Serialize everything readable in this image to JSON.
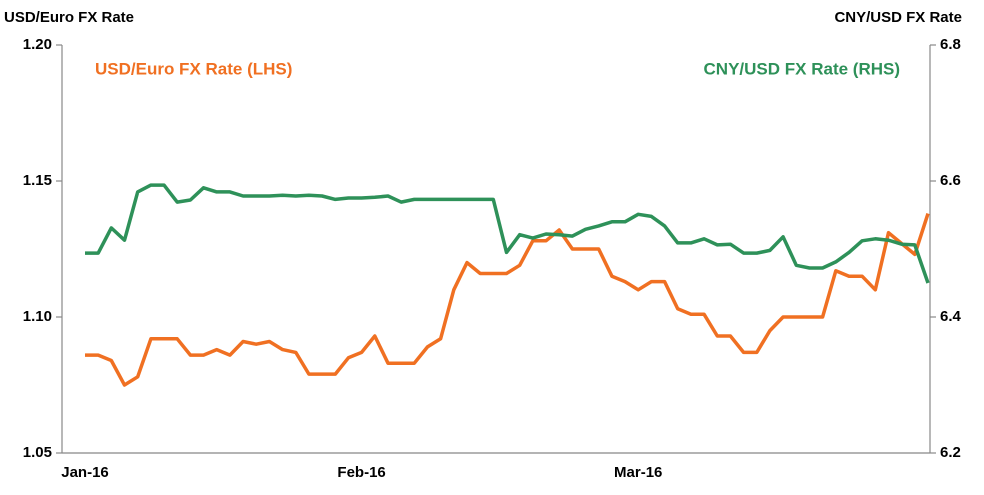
{
  "chart_data": {
    "type": "line",
    "y_label": "USD/Euro FX Rate",
    "y2_label": "CNY/USD  FX Rate",
    "categories": [
      "Jan-16",
      null,
      null,
      null,
      null,
      null,
      null,
      null,
      null,
      null,
      null,
      null,
      null,
      null,
      null,
      null,
      null,
      null,
      null,
      null,
      null,
      "Feb-16",
      null,
      null,
      null,
      null,
      null,
      null,
      null,
      null,
      null,
      null,
      null,
      null,
      null,
      null,
      null,
      null,
      null,
      null,
      null,
      null,
      "Mar-16",
      null,
      null,
      null,
      null,
      null,
      null,
      null,
      null,
      null,
      null,
      null,
      null,
      null,
      null,
      null,
      null,
      null,
      null,
      null,
      null,
      null,
      null
    ],
    "series": [
      {
        "name": "USD/Euro FX Rate (LHS)",
        "color": "#f07022",
        "axis": "y",
        "values": [
          1.086,
          1.086,
          1.084,
          1.075,
          1.078,
          1.092,
          1.092,
          1.092,
          1.086,
          1.086,
          1.088,
          1.086,
          1.091,
          1.09,
          1.091,
          1.088,
          1.087,
          1.079,
          1.079,
          1.079,
          1.085,
          1.087,
          1.093,
          1.083,
          1.083,
          1.083,
          1.089,
          1.092,
          1.11,
          1.12,
          1.116,
          1.116,
          1.116,
          1.119,
          1.128,
          1.128,
          1.132,
          1.125,
          1.125,
          1.125,
          1.115,
          1.113,
          1.11,
          1.113,
          1.113,
          1.103,
          1.101,
          1.101,
          1.093,
          1.093,
          1.087,
          1.087,
          1.095,
          1.1,
          1.1,
          1.1,
          1.1,
          1.117,
          1.115,
          1.115,
          1.11,
          1.131,
          1.127,
          1.123,
          1.138
        ]
      },
      {
        "name": "CNY/USD FX Rate (RHS)",
        "color": "#2e9159",
        "axis": "y2",
        "values": [
          6.494,
          6.494,
          6.531,
          6.513,
          6.584,
          6.594,
          6.594,
          6.569,
          6.572,
          6.59,
          6.584,
          6.584,
          6.578,
          6.578,
          6.578,
          6.579,
          6.578,
          6.579,
          6.578,
          6.573,
          6.575,
          6.575,
          6.576,
          6.578,
          6.569,
          6.573,
          6.573,
          6.573,
          6.573,
          6.573,
          6.573,
          6.573,
          6.495,
          6.521,
          6.516,
          6.522,
          6.521,
          6.519,
          6.529,
          6.534,
          6.54,
          6.54,
          6.551,
          6.548,
          6.534,
          6.509,
          6.509,
          6.515,
          6.506,
          6.507,
          6.494,
          6.494,
          6.498,
          6.518,
          6.476,
          6.472,
          6.472,
          6.481,
          6.495,
          6.512,
          6.515,
          6.513,
          6.507,
          6.506,
          6.45
        ]
      }
    ],
    "ylim": [
      1.05,
      1.2
    ],
    "yticks": [
      1.05,
      {
        "value": 1.1,
        "label": "1.10"
      },
      1.15,
      {
        "value": 1.2,
        "label": "1.20"
      }
    ],
    "y2lim": [
      6.2,
      6.8
    ],
    "y2ticks": [
      6.2,
      6.4,
      6.6,
      6.8
    ],
    "grid": false
  }
}
